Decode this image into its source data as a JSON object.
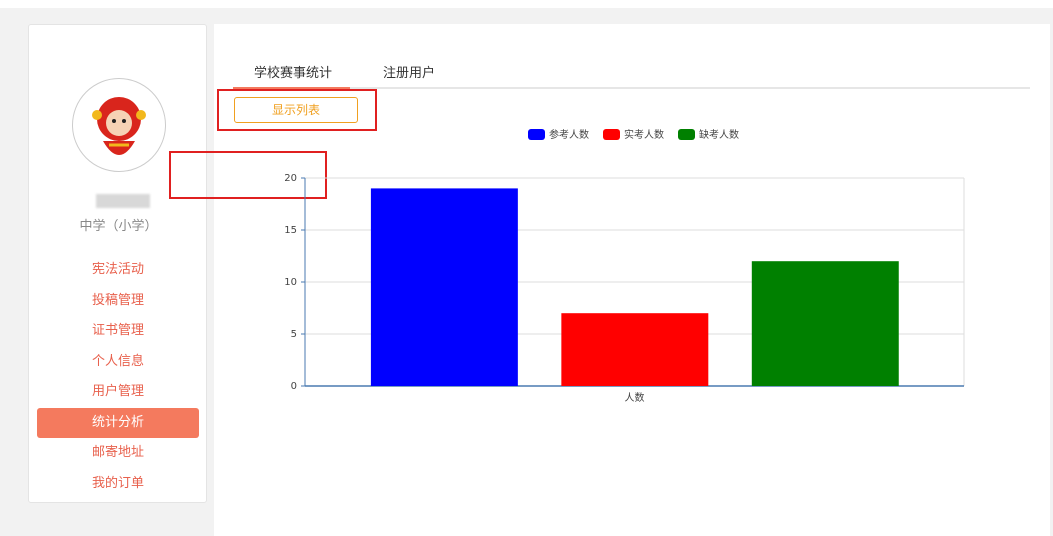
{
  "sidebar": {
    "school": "中学（小学）",
    "menu": [
      "宪法活动",
      "投稿管理",
      "证书管理",
      "个人信息",
      "用户管理",
      "统计分析",
      "邮寄地址",
      "我的订单"
    ]
  },
  "tabs": [
    "学校赛事统计",
    "注册用户"
  ],
  "button": "显示列表",
  "chart_data": {
    "type": "bar",
    "categories": [
      "人数"
    ],
    "series": [
      {
        "name": "参考人数",
        "color": "#0000ff",
        "values": [
          19
        ]
      },
      {
        "name": "实考人数",
        "color": "#ff0000",
        "values": [
          7
        ]
      },
      {
        "name": "缺考人数",
        "color": "#008000",
        "values": [
          12
        ]
      }
    ],
    "ylim": [
      0,
      20
    ],
    "yticks": [
      0,
      5,
      10,
      15,
      20
    ],
    "grid": true,
    "legend": "top"
  }
}
